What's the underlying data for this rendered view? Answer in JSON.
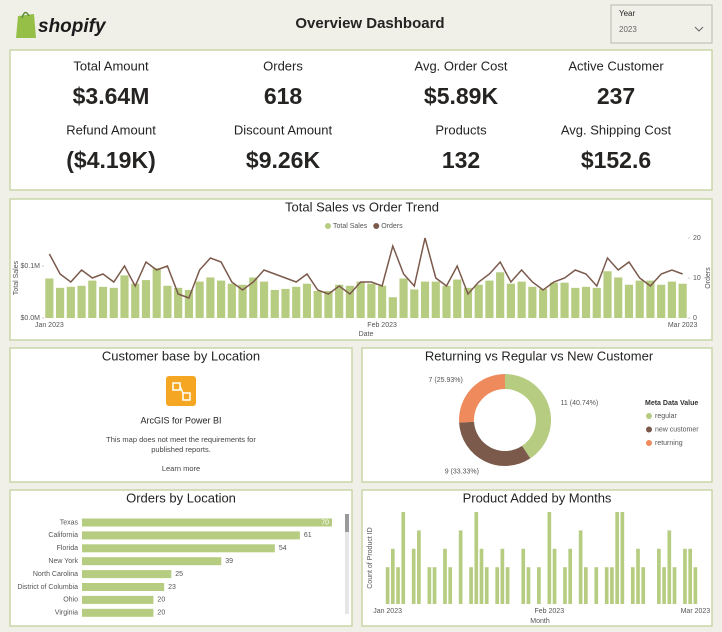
{
  "header": {
    "logo": "shopify",
    "title": "Overview Dashboard",
    "filter": {
      "label": "Year",
      "value": "2023"
    }
  },
  "kpis": [
    {
      "label": "Total Amount",
      "value": "$3.64M"
    },
    {
      "label": "Orders",
      "value": "618"
    },
    {
      "label": "Avg. Order Cost",
      "value": "$5.89K"
    },
    {
      "label": "Active Customer",
      "value": "237"
    },
    {
      "label": "Refund Amount",
      "value": "($4.19K)"
    },
    {
      "label": "Discount Amount",
      "value": "$9.26K"
    },
    {
      "label": "Products",
      "value": "132"
    },
    {
      "label": "Avg. Shipping Cost",
      "value": "$152.6"
    }
  ],
  "map_panel": {
    "title": "Customer base by Location",
    "app": "ArcGIS for Power BI",
    "message": [
      "This map does not meet the requirements for",
      "published reports."
    ],
    "link": "Learn more"
  },
  "chart_data": [
    {
      "type": "combo",
      "title": "Total Sales vs Order Trend",
      "x_label": "Date",
      "y_label": "Total Sales",
      "y2_label": "Orders",
      "legend": "top",
      "categories": [
        "Jan 2023",
        null,
        null,
        null,
        null,
        null,
        null,
        null,
        null,
        null,
        null,
        null,
        null,
        null,
        null,
        null,
        null,
        null,
        null,
        null,
        null,
        null,
        null,
        null,
        null,
        null,
        null,
        null,
        null,
        null,
        null,
        "Feb 2023",
        null,
        null,
        null,
        null,
        null,
        null,
        null,
        null,
        null,
        null,
        null,
        null,
        null,
        null,
        null,
        null,
        null,
        null,
        null,
        null,
        null,
        null,
        null,
        null,
        null,
        null,
        null,
        "Mar 2023"
      ],
      "ylim": [
        0,
        154000
      ],
      "yticks": [
        {
          "value": 0,
          "label": "$0.0M"
        },
        {
          "value": 100000,
          "label": "$0.1M"
        }
      ],
      "y2lim": [
        0,
        20
      ],
      "y2ticks": [
        0,
        10,
        20
      ],
      "series": [
        {
          "name": "Total Sales",
          "color": "#b6cc80",
          "kind": "bar",
          "values": [
            76000,
            58000,
            60000,
            62000,
            72000,
            60000,
            58000,
            82000,
            66000,
            73000,
            96000,
            62000,
            58000,
            54000,
            70000,
            78000,
            72000,
            66000,
            64000,
            78000,
            70000,
            54000,
            56000,
            60000,
            66000,
            52000,
            52000,
            64000,
            62000,
            70000,
            66000,
            62000,
            40000,
            76000,
            55000,
            70000,
            70000,
            62000,
            74000,
            58000,
            64000,
            72000,
            88000,
            66000,
            70000,
            60000,
            56000,
            68000,
            68000,
            58000,
            60000,
            58000,
            90000,
            78000,
            64000,
            72000,
            72000,
            64000,
            70000,
            66000
          ]
        },
        {
          "name": "Orders",
          "color": "#7b5a4c",
          "kind": "line",
          "axis": "y2",
          "values": [
            16,
            11,
            9,
            12,
            10,
            11,
            9,
            13,
            8,
            14,
            12,
            13,
            6,
            5,
            12,
            15,
            14,
            9,
            7,
            9,
            12,
            11,
            10,
            9,
            11,
            7,
            6,
            8,
            6,
            9,
            9,
            8,
            18,
            11,
            8,
            20,
            10,
            8,
            13,
            6,
            9,
            11,
            14,
            9,
            12,
            9,
            7,
            9,
            10,
            12,
            11,
            8,
            15,
            12,
            14,
            10,
            8,
            11,
            12,
            11
          ]
        }
      ]
    },
    {
      "type": "donut",
      "title": "Returning vs Regular vs New Customer",
      "legend_title": "Meta Data Value",
      "legend": "right",
      "categories": [
        "regular",
        "new customer",
        "returning"
      ],
      "values": [
        11,
        9,
        7
      ],
      "value_labels": [
        "11 (40.74%)",
        "9 (33.33%)",
        "7 (25.93%)"
      ],
      "colors": [
        "#b6cc80",
        "#7b5a4c",
        "#ef8a5d"
      ]
    },
    {
      "type": "hbar",
      "title": "Orders by Location",
      "categories": [
        "Texas",
        "California",
        "Florida",
        "New York",
        "North Carolina",
        "District of Columbia",
        "Ohio",
        "Virginia"
      ],
      "values": [
        70,
        61,
        54,
        39,
        25,
        23,
        20,
        20
      ],
      "xlim": [
        0,
        70
      ],
      "color": "#b6cc80"
    },
    {
      "type": "bar",
      "title": "Product Added by Months",
      "x_label": "Month",
      "y_label": "Count of Product ID",
      "categories": [
        "Jan 2023",
        null,
        null,
        null,
        null,
        null,
        null,
        null,
        null,
        null,
        null,
        null,
        null,
        null,
        null,
        null,
        null,
        null,
        null,
        null,
        null,
        null,
        null,
        null,
        null,
        null,
        null,
        null,
        null,
        null,
        null,
        "Feb 2023",
        null,
        null,
        null,
        null,
        null,
        null,
        null,
        null,
        null,
        null,
        null,
        null,
        null,
        null,
        null,
        null,
        null,
        null,
        null,
        null,
        null,
        null,
        null,
        null,
        null,
        null,
        null,
        "Mar 2023"
      ],
      "values": [
        2,
        3,
        2,
        5,
        0,
        3,
        4,
        0,
        2,
        2,
        0,
        3,
        2,
        0,
        4,
        0,
        2,
        5,
        3,
        2,
        0,
        2,
        3,
        2,
        0,
        0,
        3,
        2,
        0,
        2,
        0,
        5,
        3,
        0,
        2,
        3,
        0,
        4,
        2,
        0,
        2,
        0,
        2,
        2,
        5,
        5,
        0,
        2,
        3,
        2,
        0,
        0,
        3,
        2,
        4,
        2,
        0,
        3,
        3,
        2
      ],
      "ylim": [
        0,
        5
      ],
      "color": "#b6cc80"
    }
  ]
}
